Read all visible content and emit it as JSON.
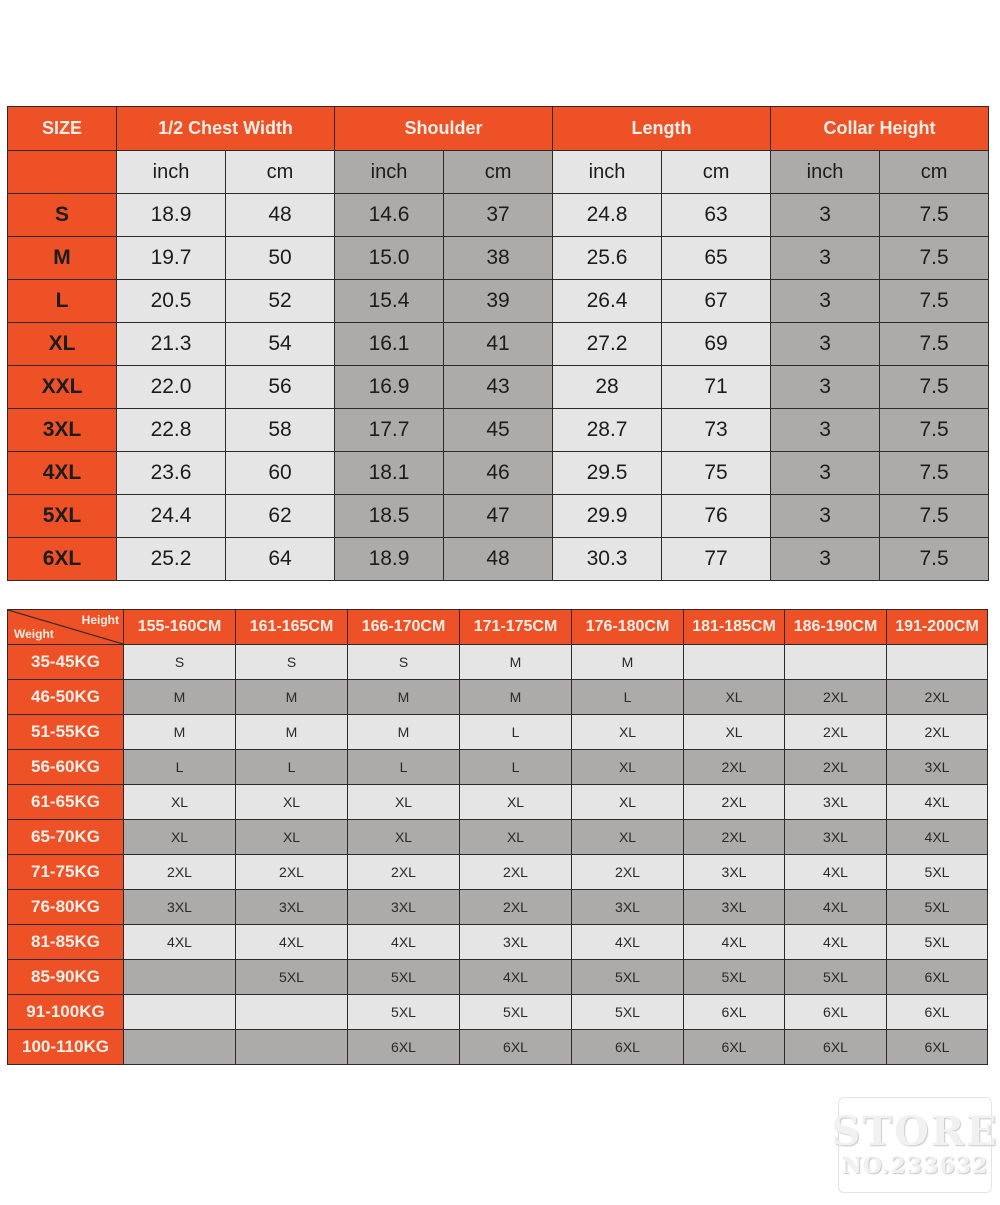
{
  "measurements": {
    "size_label": "SIZE",
    "groups": [
      "1/2 Chest Width",
      "Shoulder",
      "Length",
      "Collar Height"
    ],
    "units": [
      "inch",
      "cm",
      "inch",
      "cm",
      "inch",
      "cm",
      "inch",
      "cm"
    ],
    "rows": [
      {
        "size": "S",
        "values": [
          "18.9",
          "48",
          "14.6",
          "37",
          "24.8",
          "63",
          "3",
          "7.5"
        ]
      },
      {
        "size": "M",
        "values": [
          "19.7",
          "50",
          "15.0",
          "38",
          "25.6",
          "65",
          "3",
          "7.5"
        ]
      },
      {
        "size": "L",
        "values": [
          "20.5",
          "52",
          "15.4",
          "39",
          "26.4",
          "67",
          "3",
          "7.5"
        ]
      },
      {
        "size": "XL",
        "values": [
          "21.3",
          "54",
          "16.1",
          "41",
          "27.2",
          "69",
          "3",
          "7.5"
        ]
      },
      {
        "size": "XXL",
        "values": [
          "22.0",
          "56",
          "16.9",
          "43",
          "28",
          "71",
          "3",
          "7.5"
        ]
      },
      {
        "size": "3XL",
        "values": [
          "22.8",
          "58",
          "17.7",
          "45",
          "28.7",
          "73",
          "3",
          "7.5"
        ]
      },
      {
        "size": "4XL",
        "values": [
          "23.6",
          "60",
          "18.1",
          "46",
          "29.5",
          "75",
          "3",
          "7.5"
        ]
      },
      {
        "size": "5XL",
        "values": [
          "24.4",
          "62",
          "18.5",
          "47",
          "29.9",
          "76",
          "3",
          "7.5"
        ]
      },
      {
        "size": "6XL",
        "values": [
          "25.2",
          "64",
          "18.9",
          "48",
          "30.3",
          "77",
          "3",
          "7.5"
        ]
      }
    ]
  },
  "fit_chart": {
    "corner_height_label": "Height",
    "corner_weight_label": "Weight",
    "heights": [
      "155-160CM",
      "161-165CM",
      "166-170CM",
      "171-175CM",
      "176-180CM",
      "181-185CM",
      "186-190CM",
      "191-200CM"
    ],
    "rows": [
      {
        "weight": "35-45KG",
        "sizes": [
          "S",
          "S",
          "S",
          "M",
          "M",
          "",
          "",
          ""
        ]
      },
      {
        "weight": "46-50KG",
        "sizes": [
          "M",
          "M",
          "M",
          "M",
          "L",
          "XL",
          "2XL",
          "2XL"
        ]
      },
      {
        "weight": "51-55KG",
        "sizes": [
          "M",
          "M",
          "M",
          "L",
          "XL",
          "XL",
          "2XL",
          "2XL"
        ]
      },
      {
        "weight": "56-60KG",
        "sizes": [
          "L",
          "L",
          "L",
          "L",
          "XL",
          "2XL",
          "2XL",
          "3XL"
        ]
      },
      {
        "weight": "61-65KG",
        "sizes": [
          "XL",
          "XL",
          "XL",
          "XL",
          "XL",
          "2XL",
          "3XL",
          "4XL"
        ]
      },
      {
        "weight": "65-70KG",
        "sizes": [
          "XL",
          "XL",
          "XL",
          "XL",
          "XL",
          "2XL",
          "3XL",
          "4XL"
        ]
      },
      {
        "weight": "71-75KG",
        "sizes": [
          "2XL",
          "2XL",
          "2XL",
          "2XL",
          "2XL",
          "3XL",
          "4XL",
          "5XL"
        ]
      },
      {
        "weight": "76-80KG",
        "sizes": [
          "3XL",
          "3XL",
          "3XL",
          "2XL",
          "3XL",
          "3XL",
          "4XL",
          "5XL"
        ]
      },
      {
        "weight": "81-85KG",
        "sizes": [
          "4XL",
          "4XL",
          "4XL",
          "3XL",
          "4XL",
          "4XL",
          "4XL",
          "5XL"
        ]
      },
      {
        "weight": "85-90KG",
        "sizes": [
          "",
          "5XL",
          "5XL",
          "4XL",
          "5XL",
          "5XL",
          "5XL",
          "6XL"
        ]
      },
      {
        "weight": "91-100KG",
        "sizes": [
          "",
          "",
          "5XL",
          "5XL",
          "5XL",
          "6XL",
          "6XL",
          "6XL"
        ]
      },
      {
        "weight": "100-110KG",
        "sizes": [
          "",
          "",
          "6XL",
          "6XL",
          "6XL",
          "6XL",
          "6XL",
          "6XL"
        ]
      }
    ]
  },
  "watermark": {
    "line1": "STORE",
    "line2": "NO.233632"
  },
  "colors": {
    "header_orange": "#ed5125",
    "light_gray": "#e6e5e5",
    "dark_gray": "#adaaaa",
    "border": "#2e2a2a"
  }
}
